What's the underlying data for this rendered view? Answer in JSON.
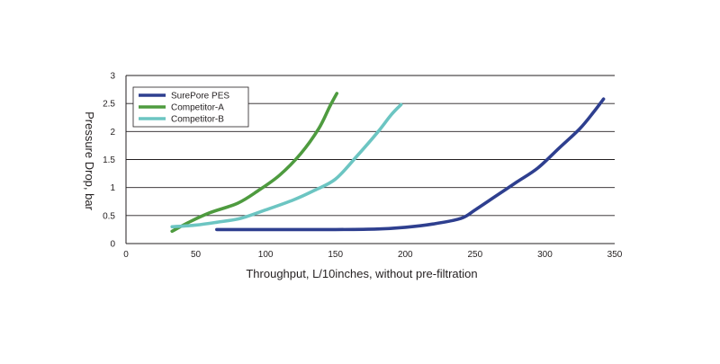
{
  "chart_data": {
    "type": "line",
    "title": "",
    "xlabel": "Throughput, L/10inches, without pre-filtration",
    "ylabel": "Pressure Drop, bar",
    "xlim": [
      0,
      350
    ],
    "ylim": [
      0,
      3
    ],
    "xticks": [
      "0",
      "50",
      "100",
      "150",
      "200",
      "250",
      "300",
      "350"
    ],
    "yticks": [
      "0",
      "0.5",
      "1",
      "1.5",
      "2",
      "2.5",
      "3"
    ],
    "grid": "horizontal",
    "legend_position": "top-left",
    "series": [
      {
        "name": "SurePore PES",
        "color": "#2e3f8f",
        "x": [
          65,
          100,
          150,
          180,
          200,
          220,
          240,
          250,
          265,
          280,
          295,
          310,
          325,
          335,
          342
        ],
        "y": [
          0.25,
          0.25,
          0.25,
          0.26,
          0.29,
          0.35,
          0.45,
          0.6,
          0.85,
          1.1,
          1.35,
          1.7,
          2.05,
          2.35,
          2.58
        ]
      },
      {
        "name": "Competitor-A",
        "color": "#4e9b3f",
        "x": [
          33,
          45,
          60,
          80,
          95,
          110,
          125,
          138,
          146,
          151
        ],
        "y": [
          0.22,
          0.38,
          0.55,
          0.72,
          0.95,
          1.22,
          1.6,
          2.05,
          2.45,
          2.68
        ]
      },
      {
        "name": "Competitor-B",
        "color": "#6cc5c2",
        "x": [
          33,
          50,
          65,
          82,
          100,
          120,
          135,
          150,
          165,
          180,
          190,
          197
        ],
        "y": [
          0.3,
          0.33,
          0.38,
          0.45,
          0.6,
          0.78,
          0.95,
          1.15,
          1.55,
          1.98,
          2.3,
          2.48
        ]
      }
    ]
  }
}
